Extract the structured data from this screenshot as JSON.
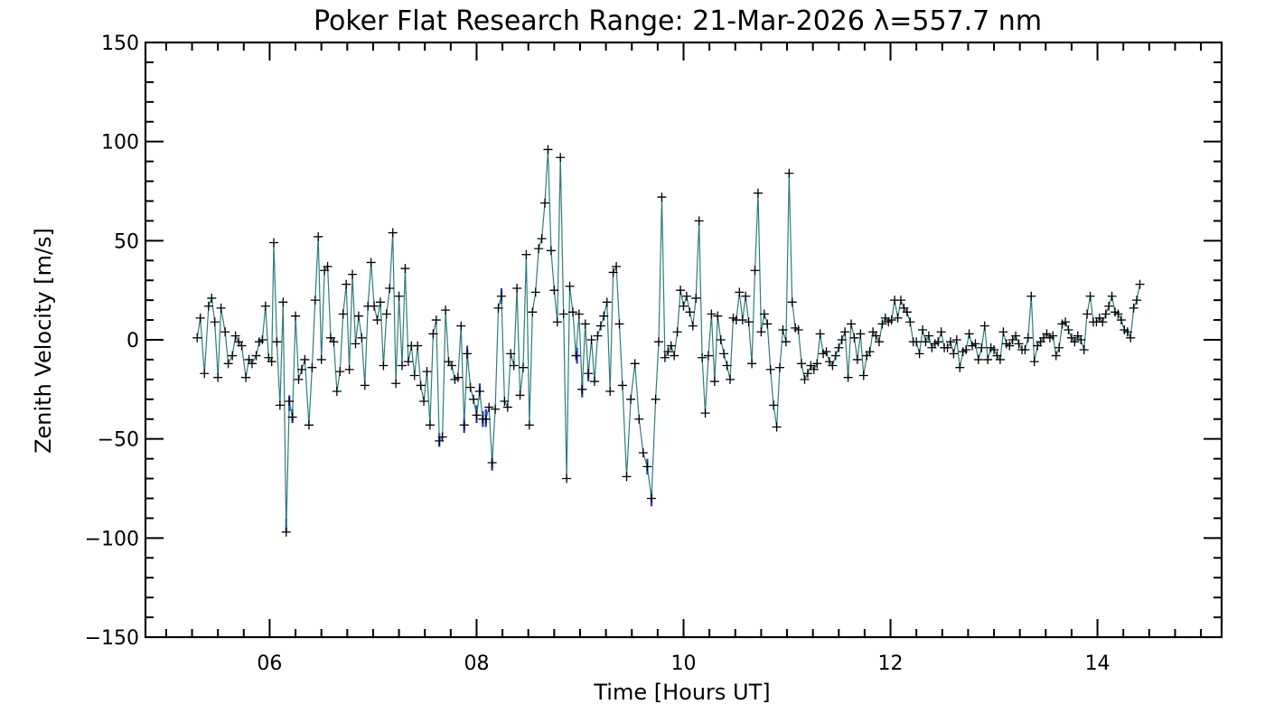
{
  "chart_data": {
    "type": "line",
    "title": "Poker Flat Research Range: 21-Mar-2026 λ=557.7 nm",
    "xlabel": "Time [Hours UT]",
    "ylabel": "Zenith Velocity [m/s]",
    "xlim": [
      4.8,
      15.2
    ],
    "ylim": [
      -150,
      150
    ],
    "x_ticks": [
      6,
      8,
      10,
      12,
      14
    ],
    "x_tick_labels": [
      "06",
      "08",
      "10",
      "12",
      "14"
    ],
    "y_ticks": [
      -150,
      -100,
      -50,
      0,
      50,
      100,
      150
    ],
    "y_tick_labels": [
      "−150",
      "−100",
      "−50",
      "0",
      "50",
      "100",
      "150"
    ],
    "line_color": "#2e7d7a",
    "error_color": "#2233dd",
    "marker": "+",
    "series": [
      {
        "name": "Zenith Velocity",
        "points": [
          [
            5.3,
            1
          ],
          [
            5.33,
            11
          ],
          [
            5.37,
            -17
          ],
          [
            5.41,
            17
          ],
          [
            5.44,
            21
          ],
          [
            5.47,
            9
          ],
          [
            5.5,
            -19
          ],
          [
            5.53,
            16
          ],
          [
            5.57,
            4
          ],
          [
            5.6,
            -12
          ],
          [
            5.64,
            -8
          ],
          [
            5.67,
            2
          ],
          [
            5.7,
            -1
          ],
          [
            5.73,
            -3
          ],
          [
            5.77,
            -19
          ],
          [
            5.8,
            -10
          ],
          [
            5.83,
            -12
          ],
          [
            5.87,
            -8
          ],
          [
            5.9,
            -1
          ],
          [
            5.93,
            0
          ],
          [
            5.96,
            17
          ],
          [
            5.99,
            -9
          ],
          [
            6.02,
            -11
          ],
          [
            6.04,
            49
          ],
          [
            6.07,
            -1
          ],
          [
            6.1,
            -33
          ],
          [
            6.13,
            19
          ],
          [
            6.16,
            -97
          ],
          [
            6.19,
            -31
          ],
          [
            6.22,
            -39
          ],
          [
            6.25,
            12
          ],
          [
            6.28,
            -20
          ],
          [
            6.31,
            -15
          ],
          [
            6.34,
            -10
          ],
          [
            6.38,
            -43
          ],
          [
            6.41,
            -14
          ],
          [
            6.44,
            20
          ],
          [
            6.47,
            52
          ],
          [
            6.5,
            -10
          ],
          [
            6.53,
            35
          ],
          [
            6.56,
            37
          ],
          [
            6.59,
            1
          ],
          [
            6.62,
            -1
          ],
          [
            6.65,
            -26
          ],
          [
            6.68,
            -16
          ],
          [
            6.71,
            13
          ],
          [
            6.74,
            28
          ],
          [
            6.77,
            -15
          ],
          [
            6.8,
            33
          ],
          [
            6.83,
            -2
          ],
          [
            6.86,
            12
          ],
          [
            6.89,
            1
          ],
          [
            6.92,
            -23
          ],
          [
            6.95,
            17
          ],
          [
            6.98,
            39
          ],
          [
            7.01,
            17
          ],
          [
            7.04,
            10
          ],
          [
            7.07,
            19
          ],
          [
            7.1,
            -13
          ],
          [
            7.13,
            13
          ],
          [
            7.16,
            26
          ],
          [
            7.19,
            54
          ],
          [
            7.22,
            -22
          ],
          [
            7.25,
            22
          ],
          [
            7.28,
            -13
          ],
          [
            7.31,
            36
          ],
          [
            7.34,
            -11
          ],
          [
            7.37,
            -3
          ],
          [
            7.4,
            -18
          ],
          [
            7.43,
            -3
          ],
          [
            7.46,
            -23
          ],
          [
            7.49,
            -31
          ],
          [
            7.52,
            -16
          ],
          [
            7.55,
            -43
          ],
          [
            7.58,
            3
          ],
          [
            7.61,
            10
          ],
          [
            7.64,
            -51
          ],
          [
            7.67,
            -49
          ],
          [
            7.7,
            15
          ],
          [
            7.73,
            -11
          ],
          [
            7.76,
            -13
          ],
          [
            7.79,
            -20
          ],
          [
            7.82,
            -19
          ],
          [
            7.85,
            7
          ],
          [
            7.88,
            -43
          ],
          [
            7.91,
            -7
          ],
          [
            7.94,
            -24
          ],
          [
            7.97,
            -30
          ],
          [
            8.0,
            -38
          ],
          [
            8.03,
            -26
          ],
          [
            8.06,
            -40
          ],
          [
            8.09,
            -40
          ],
          [
            8.12,
            -34
          ],
          [
            8.15,
            -62
          ],
          [
            8.18,
            -35
          ],
          [
            8.21,
            16
          ],
          [
            8.24,
            22
          ],
          [
            8.27,
            -31
          ],
          [
            8.3,
            -34
          ],
          [
            8.33,
            -7
          ],
          [
            8.36,
            -13
          ],
          [
            8.39,
            26
          ],
          [
            8.42,
            -28
          ],
          [
            8.45,
            -14
          ],
          [
            8.48,
            43
          ],
          [
            8.51,
            -43
          ],
          [
            8.54,
            14
          ],
          [
            8.57,
            24
          ],
          [
            8.6,
            46
          ],
          [
            8.63,
            51
          ],
          [
            8.66,
            69
          ],
          [
            8.69,
            96
          ],
          [
            8.72,
            45
          ],
          [
            8.75,
            25
          ],
          [
            8.78,
            9
          ],
          [
            8.81,
            92
          ],
          [
            8.84,
            13
          ],
          [
            8.87,
            -70
          ],
          [
            8.9,
            27
          ],
          [
            8.93,
            14
          ],
          [
            8.96,
            -8
          ],
          [
            8.99,
            13
          ],
          [
            9.02,
            -25
          ],
          [
            9.05,
            8
          ],
          [
            9.08,
            -17
          ],
          [
            9.11,
            0
          ],
          [
            9.14,
            -21
          ],
          [
            9.17,
            2
          ],
          [
            9.2,
            7
          ],
          [
            9.23,
            12
          ],
          [
            9.26,
            19
          ],
          [
            9.29,
            -26
          ],
          [
            9.32,
            34
          ],
          [
            9.35,
            37
          ],
          [
            9.38,
            8
          ],
          [
            9.41,
            -23
          ],
          [
            9.45,
            -69
          ],
          [
            9.49,
            -30
          ],
          [
            9.53,
            -12
          ],
          [
            9.57,
            -40
          ],
          [
            9.61,
            -57
          ],
          [
            9.65,
            -64
          ],
          [
            9.69,
            -80
          ],
          [
            9.73,
            -30
          ],
          [
            9.76,
            -1
          ],
          [
            9.79,
            72
          ],
          [
            9.82,
            -9
          ],
          [
            9.85,
            -6
          ],
          [
            9.88,
            -3
          ],
          [
            9.91,
            -8
          ],
          [
            9.94,
            4
          ],
          [
            9.97,
            25
          ],
          [
            10.0,
            17
          ],
          [
            10.03,
            22
          ],
          [
            10.06,
            14
          ],
          [
            10.09,
            7
          ],
          [
            10.12,
            21
          ],
          [
            10.15,
            60
          ],
          [
            10.18,
            -9
          ],
          [
            10.21,
            -37
          ],
          [
            10.24,
            -8
          ],
          [
            10.27,
            13
          ],
          [
            10.3,
            -21
          ],
          [
            10.33,
            12
          ],
          [
            10.36,
            0
          ],
          [
            10.39,
            -7
          ],
          [
            10.42,
            -13
          ],
          [
            10.45,
            -20
          ],
          [
            10.48,
            11
          ],
          [
            10.51,
            10
          ],
          [
            10.54,
            24
          ],
          [
            10.57,
            10
          ],
          [
            10.6,
            22
          ],
          [
            10.63,
            9
          ],
          [
            10.66,
            -12
          ],
          [
            10.69,
            35
          ],
          [
            10.72,
            74
          ],
          [
            10.75,
            4
          ],
          [
            10.78,
            13
          ],
          [
            10.81,
            8
          ],
          [
            10.84,
            -15
          ],
          [
            10.87,
            -33
          ],
          [
            10.9,
            -44
          ],
          [
            10.93,
            -14
          ],
          [
            10.96,
            5
          ],
          [
            10.99,
            -1
          ],
          [
            11.02,
            84
          ],
          [
            11.05,
            19
          ],
          [
            11.08,
            6
          ],
          [
            11.11,
            5
          ],
          [
            11.14,
            -12
          ],
          [
            11.17,
            -20
          ],
          [
            11.2,
            -17
          ],
          [
            11.23,
            -13
          ],
          [
            11.26,
            -15
          ],
          [
            11.29,
            -12
          ],
          [
            11.32,
            3
          ],
          [
            11.35,
            -7
          ],
          [
            11.38,
            -6
          ],
          [
            11.41,
            -11
          ],
          [
            11.44,
            -13
          ],
          [
            11.47,
            -8
          ],
          [
            11.5,
            -4
          ],
          [
            11.53,
            0
          ],
          [
            11.56,
            4
          ],
          [
            11.59,
            -19
          ],
          [
            11.62,
            8
          ],
          [
            11.65,
            1
          ],
          [
            11.68,
            -10
          ],
          [
            11.71,
            3
          ],
          [
            11.74,
            -18
          ],
          [
            11.77,
            -8
          ],
          [
            11.8,
            -6
          ],
          [
            11.83,
            4
          ],
          [
            11.86,
            2
          ],
          [
            11.89,
            -1
          ],
          [
            11.92,
            8
          ],
          [
            11.95,
            11
          ],
          [
            11.98,
            9
          ],
          [
            12.01,
            10
          ],
          [
            12.04,
            20
          ],
          [
            12.07,
            11
          ],
          [
            12.1,
            20
          ],
          [
            12.13,
            16
          ],
          [
            12.16,
            14
          ],
          [
            12.19,
            9
          ],
          [
            12.22,
            -1
          ],
          [
            12.25,
            -1
          ],
          [
            12.28,
            -7
          ],
          [
            12.31,
            5
          ],
          [
            12.34,
            -1
          ],
          [
            12.37,
            2
          ],
          [
            12.4,
            -4
          ],
          [
            12.43,
            -2
          ],
          [
            12.46,
            -1
          ],
          [
            12.49,
            4
          ],
          [
            12.52,
            -4
          ],
          [
            12.55,
            -4
          ],
          [
            12.58,
            -1
          ],
          [
            12.61,
            -7
          ],
          [
            12.64,
            0
          ],
          [
            12.67,
            -14
          ],
          [
            12.7,
            -6
          ],
          [
            12.73,
            -5
          ],
          [
            12.76,
            3
          ],
          [
            12.79,
            -3
          ],
          [
            12.82,
            -2
          ],
          [
            12.85,
            -10
          ],
          [
            12.88,
            -4
          ],
          [
            12.91,
            7
          ],
          [
            12.94,
            -10
          ],
          [
            12.97,
            -4
          ],
          [
            13.0,
            -5
          ],
          [
            13.03,
            -8
          ],
          [
            13.06,
            -10
          ],
          [
            13.09,
            4
          ],
          [
            13.12,
            -2
          ],
          [
            13.15,
            -3
          ],
          [
            13.18,
            0
          ],
          [
            13.21,
            2
          ],
          [
            13.24,
            -2
          ],
          [
            13.27,
            -5
          ],
          [
            13.3,
            -5
          ],
          [
            13.33,
            1
          ],
          [
            13.36,
            22
          ],
          [
            13.39,
            -11
          ],
          [
            13.42,
            -3
          ],
          [
            13.45,
            -1
          ],
          [
            13.48,
            1
          ],
          [
            13.51,
            3
          ],
          [
            13.54,
            1
          ],
          [
            13.57,
            2
          ],
          [
            13.6,
            -8
          ],
          [
            13.63,
            -4
          ],
          [
            13.66,
            8
          ],
          [
            13.69,
            9
          ],
          [
            13.72,
            5
          ],
          [
            13.75,
            1
          ],
          [
            13.78,
            -1
          ],
          [
            13.81,
            2
          ],
          [
            13.84,
            0
          ],
          [
            13.87,
            -5
          ],
          [
            13.9,
            13
          ],
          [
            13.93,
            22
          ],
          [
            13.96,
            9
          ],
          [
            13.99,
            9
          ],
          [
            14.02,
            11
          ],
          [
            14.05,
            9
          ],
          [
            14.08,
            13
          ],
          [
            14.11,
            17
          ],
          [
            14.14,
            22
          ],
          [
            14.17,
            14
          ],
          [
            14.2,
            13
          ],
          [
            14.23,
            10
          ],
          [
            14.26,
            5
          ],
          [
            14.29,
            4
          ],
          [
            14.32,
            1
          ],
          [
            14.35,
            16
          ],
          [
            14.38,
            20
          ],
          [
            14.41,
            28
          ]
        ]
      }
    ],
    "error_bars": [
      {
        "x": 6.16,
        "y_low": -97,
        "y_high": -90
      },
      {
        "x": 6.19,
        "y_low": -36,
        "y_high": -28
      },
      {
        "x": 6.22,
        "y_low": -42,
        "y_high": -35
      },
      {
        "x": 7.64,
        "y_low": -54,
        "y_high": -47
      },
      {
        "x": 7.88,
        "y_low": -47,
        "y_high": -39
      },
      {
        "x": 7.91,
        "y_low": -10,
        "y_high": -3
      },
      {
        "x": 8.0,
        "y_low": -42,
        "y_high": -33
      },
      {
        "x": 8.03,
        "y_low": -30,
        "y_high": -22
      },
      {
        "x": 8.06,
        "y_low": -44,
        "y_high": -36
      },
      {
        "x": 8.09,
        "y_low": -44,
        "y_high": -35
      },
      {
        "x": 8.15,
        "y_low": -66,
        "y_high": -58
      },
      {
        "x": 8.24,
        "y_low": 18,
        "y_high": 26
      },
      {
        "x": 8.97,
        "y_low": -12,
        "y_high": -4
      },
      {
        "x": 9.02,
        "y_low": -29,
        "y_high": -21
      },
      {
        "x": 9.08,
        "y_low": -21,
        "y_high": -13
      },
      {
        "x": 9.69,
        "y_low": -84,
        "y_high": -76
      },
      {
        "x": 9.65,
        "y_low": -68,
        "y_high": -60
      }
    ]
  }
}
